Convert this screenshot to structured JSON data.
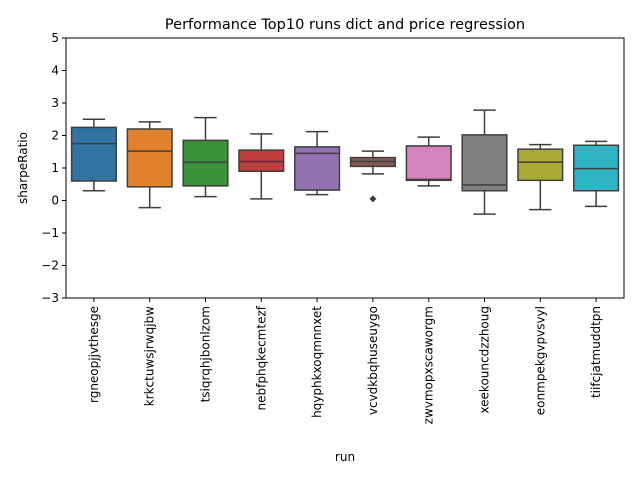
{
  "chart_data": {
    "type": "box",
    "title": "Performance Top10 runs dict and price regression",
    "xlabel": "run",
    "ylabel": "sharpeRatio",
    "ylim": [
      -3,
      5
    ],
    "yticks": [
      -3,
      -2,
      -1,
      0,
      1,
      2,
      3,
      4,
      5
    ],
    "grid": false,
    "categories": [
      "rgneopjjvthesge",
      "krkctuwsjrwqjbw",
      "tsiqrqhjbonlzom",
      "nebfphqkecmtezf",
      "hqyphkxoqmnnxet",
      "vcvdkbqhuseuygo",
      "zwvmopxscaworgm",
      "xeekouncdzzhoug",
      "eonmpekgvpvsvyl",
      "tiifcjatmuddtpn"
    ],
    "colors": [
      "#3274a1",
      "#e1812c",
      "#3a923a",
      "#c03d3e",
      "#9372b2",
      "#845b53",
      "#d684bd",
      "#7f7f7f",
      "#a9aa35",
      "#2eb4c3"
    ],
    "series": [
      {
        "whisker_low": 0.3,
        "q1": 0.6,
        "median": 1.75,
        "q3": 2.25,
        "whisker_high": 2.5,
        "outliers": []
      },
      {
        "whisker_low": -0.22,
        "q1": 0.42,
        "median": 1.52,
        "q3": 2.2,
        "whisker_high": 2.42,
        "outliers": []
      },
      {
        "whisker_low": 0.12,
        "q1": 0.45,
        "median": 1.18,
        "q3": 1.85,
        "whisker_high": 2.55,
        "outliers": []
      },
      {
        "whisker_low": 0.05,
        "q1": 0.9,
        "median": 1.2,
        "q3": 1.55,
        "whisker_high": 2.05,
        "outliers": []
      },
      {
        "whisker_low": 0.18,
        "q1": 0.32,
        "median": 1.45,
        "q3": 1.65,
        "whisker_high": 2.12,
        "outliers": []
      },
      {
        "whisker_low": 0.82,
        "q1": 1.05,
        "median": 1.2,
        "q3": 1.32,
        "whisker_high": 1.52,
        "outliers": [
          0.05
        ]
      },
      {
        "whisker_low": 0.45,
        "q1": 0.62,
        "median": 0.65,
        "q3": 1.68,
        "whisker_high": 1.95,
        "outliers": []
      },
      {
        "whisker_low": -0.42,
        "q1": 0.3,
        "median": 0.48,
        "q3": 2.02,
        "whisker_high": 2.78,
        "outliers": []
      },
      {
        "whisker_low": -0.28,
        "q1": 0.62,
        "median": 1.18,
        "q3": 1.58,
        "whisker_high": 1.72,
        "outliers": []
      },
      {
        "whisker_low": -0.18,
        "q1": 0.3,
        "median": 0.98,
        "q3": 1.7,
        "whisker_high": 1.82,
        "outliers": []
      }
    ]
  }
}
